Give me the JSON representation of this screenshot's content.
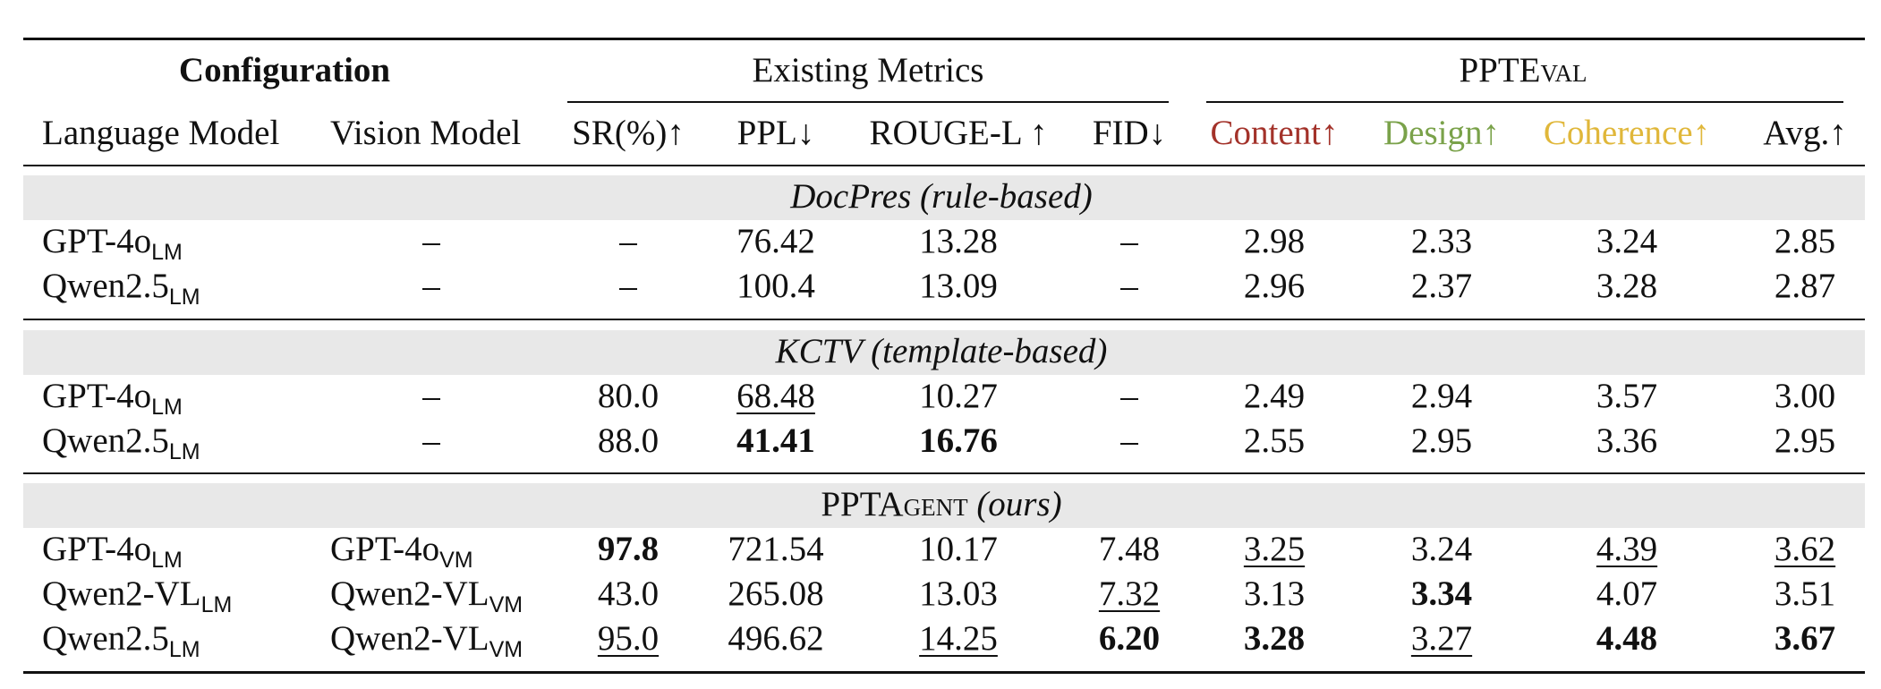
{
  "header": {
    "group_configuration": "Configuration",
    "group_existing": "Existing Metrics",
    "group_ppteval": "PPTEval",
    "columns": [
      "Language Model",
      "Vision Model",
      "SR(%)↑",
      "PPL↓",
      "ROUGE-L ↑",
      "FID↓",
      "Content↑",
      "Design↑",
      "Coherence↑",
      "Avg.↑"
    ]
  },
  "colors": {
    "content": "#a3322a",
    "design": "#7aa24a",
    "coherence": "#e0b73a"
  },
  "sections": [
    {
      "title": "DocPres (rule-based)",
      "rows": [
        {
          "lm": "GPT-4o",
          "lm_sub": "LM",
          "vm": "–",
          "vm_sub": "",
          "sr": "–",
          "ppl": "76.42",
          "rouge": "13.28",
          "fid": "–",
          "content": "2.98",
          "design": "2.33",
          "coherence": "3.24",
          "avg": "2.85"
        },
        {
          "lm": "Qwen2.5",
          "lm_sub": "LM",
          "vm": "–",
          "vm_sub": "",
          "sr": "–",
          "ppl": "100.4",
          "rouge": "13.09",
          "fid": "–",
          "content": "2.96",
          "design": "2.37",
          "coherence": "3.28",
          "avg": "2.87"
        }
      ]
    },
    {
      "title": "KCTV (template-based)",
      "rows": [
        {
          "lm": "GPT-4o",
          "lm_sub": "LM",
          "vm": "–",
          "vm_sub": "",
          "sr": "80.0",
          "ppl": "68.48",
          "rouge": "10.27",
          "fid": "–",
          "content": "2.49",
          "design": "2.94",
          "coherence": "3.57",
          "avg": "3.00"
        },
        {
          "lm": "Qwen2.5",
          "lm_sub": "LM",
          "vm": "–",
          "vm_sub": "",
          "sr": "88.0",
          "ppl": "41.41",
          "rouge": "16.76",
          "fid": "–",
          "content": "2.55",
          "design": "2.95",
          "coherence": "3.36",
          "avg": "2.95"
        }
      ]
    },
    {
      "title_main": "PPTAgent",
      "title_suffix": "(ours)",
      "rows": [
        {
          "lm": "GPT-4o",
          "lm_sub": "LM",
          "vm": "GPT-4o",
          "vm_sub": "VM",
          "sr": "97.8",
          "ppl": "721.54",
          "rouge": "10.17",
          "fid": "7.48",
          "content": "3.25",
          "design": "3.24",
          "coherence": "4.39",
          "avg": "3.62"
        },
        {
          "lm": "Qwen2-VL",
          "lm_sub": "LM",
          "vm": "Qwen2-VL",
          "vm_sub": "VM",
          "sr": "43.0",
          "ppl": "265.08",
          "rouge": "13.03",
          "fid": "7.32",
          "content": "3.13",
          "design": "3.34",
          "coherence": "4.07",
          "avg": "3.51"
        },
        {
          "lm": "Qwen2.5",
          "lm_sub": "LM",
          "vm": "Qwen2-VL",
          "vm_sub": "VM",
          "sr": "95.0",
          "ppl": "496.62",
          "rouge": "14.25",
          "fid": "6.20",
          "content": "3.28",
          "design": "3.27",
          "coherence": "4.48",
          "avg": "3.67"
        }
      ]
    }
  ]
}
